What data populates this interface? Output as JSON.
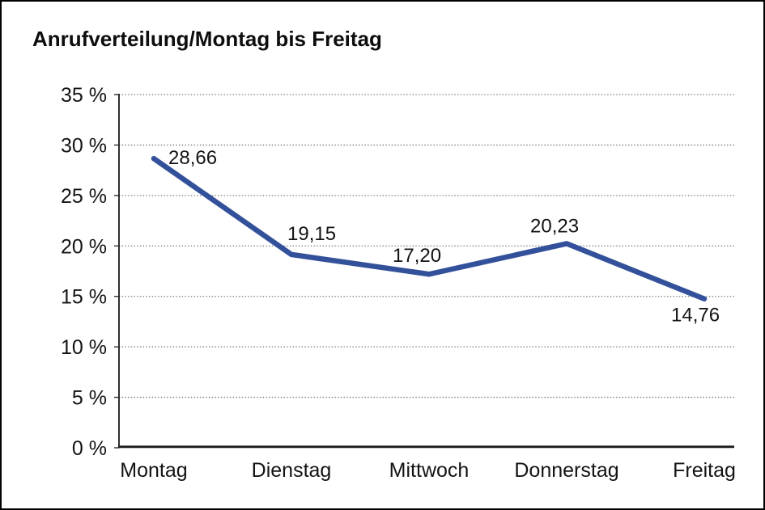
{
  "chart_data": {
    "type": "line",
    "title": "Anrufverteilung/Montag bis Freitag",
    "categories": [
      "Montag",
      "Dienstag",
      "Mittwoch",
      "Donnerstag",
      "Freitag"
    ],
    "values": [
      28.66,
      19.15,
      17.2,
      20.23,
      14.76
    ],
    "point_labels": [
      "28,66",
      "19,15",
      "17,20",
      "20,23",
      "14,76"
    ],
    "y_tick_values": [
      0,
      5,
      10,
      15,
      20,
      25,
      30,
      35
    ],
    "y_tick_labels": [
      "0 %",
      "5 %",
      "10 %",
      "15 %",
      "20 %",
      "25 %",
      "30 %",
      "35 %"
    ],
    "ylim": [
      0,
      35
    ],
    "xlabel": "",
    "ylabel": "",
    "grid": "horizontal-dotted",
    "legend": "none",
    "line_color": "#33519b",
    "axis_color": "#1a1a1a",
    "background_color": "#ffffff"
  }
}
